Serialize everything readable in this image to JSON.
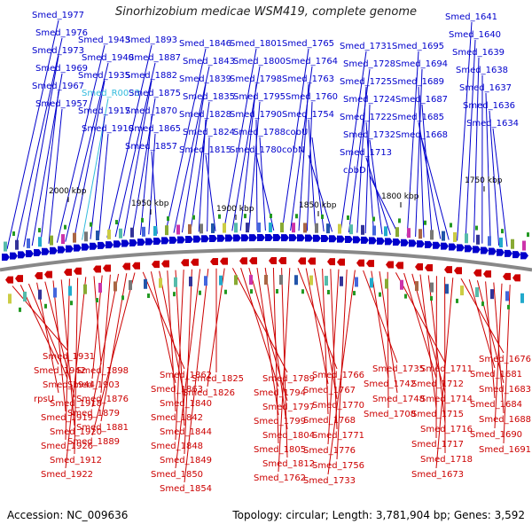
{
  "title": "Sinorhizobium medicae WSM419, complete genome",
  "accession": "Accession: NC_009636",
  "summary": "Topology: circular; Length: 3,781,904 bp; Genes: 3,592",
  "colors": {
    "forward": "#0000cc",
    "reverse": "#cc0000",
    "rna": "#33bbdd",
    "backbone": "#888888"
  },
  "scale_labels": [
    "2000 kbp",
    "1950 kbp",
    "1900 kbp",
    "1850 kbp",
    "1800 kbp",
    "1750 kbp"
  ],
  "top_genes": [
    "Smed_1977",
    "Smed_1976",
    "Smed_1973",
    "Smed_1969",
    "Smed_1967",
    "Smed_1957",
    "Smed_1943",
    "Smed_1940",
    "Smed_1935",
    "Smed_R0033",
    "Smed_1917",
    "Smed_1910",
    "Smed_1893",
    "Smed_1887",
    "Smed_1882",
    "Smed_1875",
    "Smed_1870",
    "Smed_1865",
    "Smed_1857",
    "Smed_1846",
    "Smed_1843",
    "Smed_1839",
    "Smed_1835",
    "Smed_1828",
    "Smed_1824",
    "Smed_1815",
    "Smed_1801",
    "Smed_1800",
    "Smed_1798",
    "Smed_1795",
    "Smed_1790",
    "Smed_1788",
    "Smed_1780",
    "Smed_1765",
    "Smed_1764",
    "Smed_1763",
    "Smed_1760",
    "Smed_1754",
    "cobU",
    "cobN",
    "Smed_1731",
    "Smed_1728",
    "Smed_1725",
    "Smed_1724",
    "Smed_1722",
    "Smed_1732",
    "Smed_1713",
    "cobD",
    "Smed_1695",
    "Smed_1694",
    "Smed_1689",
    "Smed_1687",
    "Smed_1685",
    "Smed_1668",
    "Smed_1641",
    "Smed_1640",
    "Smed_1639",
    "Smed_1638",
    "Smed_1637",
    "Smed_1636",
    "Smed_1634"
  ],
  "bottom_genes": [
    "Smed_1931",
    "Smed_1942",
    "Smed_1944",
    "rpsU",
    "Smed_1918",
    "Smed_1919",
    "Smed_1920",
    "Smed_1926",
    "Smed_1912",
    "Smed_1922",
    "Smed_1898",
    "Smed_1903",
    "Smed_1876",
    "Smed_1879",
    "Smed_1881",
    "Smed_1889",
    "Smed_1862",
    "Smed_1863",
    "Smed_1840",
    "Smed_1842",
    "Smed_1844",
    "Smed_1848",
    "Smed_1849",
    "Smed_1850",
    "Smed_1854",
    "Smed_1825",
    "Smed_1826",
    "Smed_1789",
    "Smed_1794",
    "Smed_1797",
    "Smed_1799",
    "Smed_1804",
    "Smed_1805",
    "Smed_1812",
    "Smed_1762",
    "Smed_1766",
    "Smed_1767",
    "Smed_1770",
    "Smed_1768",
    "Smed_1771",
    "Smed_1776",
    "Smed_1756",
    "Smed_1733",
    "Smed_1735",
    "Smed_1742",
    "Smed_1748",
    "Smed_1708",
    "Smed_1711",
    "Smed_1712",
    "Smed_1714",
    "Smed_1715",
    "Smed_1716",
    "Smed_1717",
    "Smed_1718",
    "Smed_1673",
    "Smed_1676",
    "Smed_1681",
    "Smed_1683",
    "Smed_1684",
    "Smed_1688",
    "Smed_1690",
    "Smed_1691"
  ]
}
